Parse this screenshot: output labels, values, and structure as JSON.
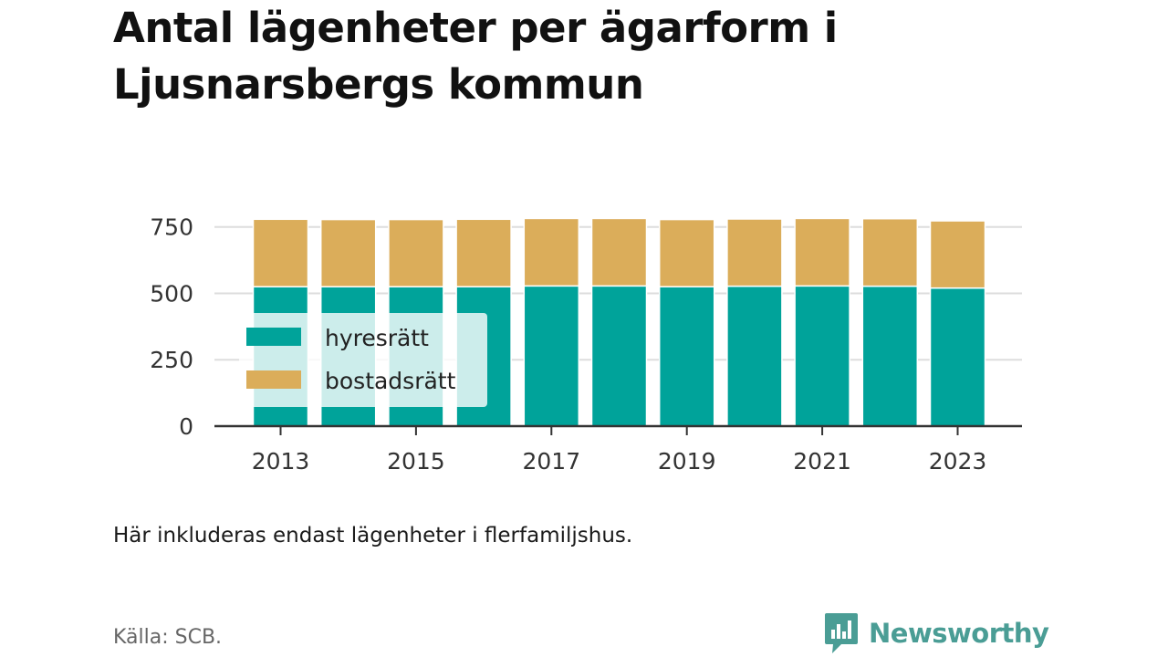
{
  "title": "Antal lägenheter per ägarform i Ljusnarsbergs kommun",
  "note": "Här inkluderas endast lägenheter i flerfamiljshus.",
  "source": "Källa: SCB.",
  "brand": {
    "name": "Newsworthy",
    "icon": "newsworthy-logo-icon",
    "color": "#4a9d95"
  },
  "chart_data": {
    "type": "bar",
    "stacked": true,
    "categories": [
      2013,
      2014,
      2015,
      2016,
      2017,
      2018,
      2019,
      2020,
      2021,
      2022,
      2023
    ],
    "x_tick_labels": [
      "2013",
      "2015",
      "2017",
      "2019",
      "2021",
      "2023"
    ],
    "series": [
      {
        "name": "hyresrätt",
        "color": "#00a39a",
        "values": [
          525,
          525,
          525,
          525,
          528,
          528,
          525,
          527,
          528,
          527,
          520
        ]
      },
      {
        "name": "bostadsrätt",
        "color": "#dbad5a",
        "values": [
          254,
          253,
          253,
          254,
          254,
          254,
          253,
          253,
          254,
          254,
          253
        ]
      }
    ],
    "ylim": [
      0,
      780
    ],
    "y_ticks": [
      0,
      250,
      500,
      750
    ],
    "grid": true,
    "legend_position": "left, over bars"
  }
}
